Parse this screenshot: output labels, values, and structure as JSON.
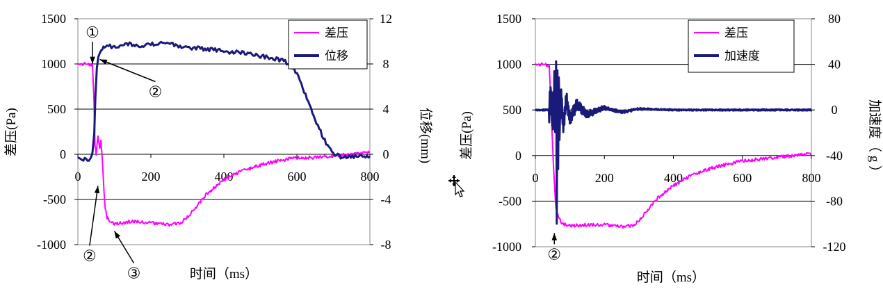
{
  "chart_data": [
    {
      "type": "line",
      "xlabel": "时间（ms）",
      "ylabel_left": "差压(Pa)",
      "ylabel_right": "位移(mm)",
      "xlim": [
        0,
        800
      ],
      "ylim_left": [
        -1000,
        1500
      ],
      "ylim_right": [
        -8,
        12
      ],
      "xticks": [
        "0",
        "200",
        "400",
        "600",
        "800"
      ],
      "yticks_left": [
        "1500",
        "1000",
        "500",
        "0",
        "-500",
        "-1000"
      ],
      "yticks_right": [
        "12",
        "8",
        "4",
        "0",
        "-4",
        "-8"
      ],
      "grid": "horizontal",
      "legend_position": "top-right",
      "series": [
        {
          "name": "差压",
          "axis": "left",
          "color": "#ff00ff",
          "x": [
            0,
            20,
            35,
            40,
            44,
            47,
            50,
            55,
            60,
            63,
            66,
            70,
            75,
            80,
            90,
            100,
            120,
            150,
            200,
            250,
            280,
            300,
            320,
            350,
            380,
            400,
            450,
            500,
            550,
            580,
            600,
            650,
            700,
            750,
            800
          ],
          "y": [
            1000,
            1000,
            995,
            980,
            600,
            100,
            0,
            200,
            50,
            150,
            0,
            -300,
            -600,
            -700,
            -750,
            -770,
            -760,
            -740,
            -760,
            -780,
            -760,
            -700,
            -600,
            -450,
            -350,
            -280,
            -180,
            -120,
            -70,
            -50,
            -40,
            -35,
            -20,
            0,
            20
          ]
        },
        {
          "name": "位移",
          "axis": "right",
          "color": "#1a1a7a",
          "x": [
            0,
            30,
            40,
            45,
            48,
            52,
            56,
            60,
            70,
            80,
            100,
            130,
            160,
            200,
            240,
            280,
            320,
            360,
            400,
            450,
            500,
            560,
            580,
            600,
            620,
            650,
            680,
            700,
            720,
            760,
            800
          ],
          "y": [
            -0.4,
            -0.4,
            0,
            2,
            5,
            7.5,
            8.5,
            9,
            9.6,
            9.6,
            9.5,
            9.8,
            9.6,
            9.7,
            9.9,
            9.5,
            9.4,
            9.3,
            9.1,
            9,
            8.7,
            8.3,
            8,
            7.2,
            5.5,
            3,
            1,
            0,
            -0.2,
            -0.2,
            -0.2
          ]
        }
      ],
      "annotations": [
        {
          "label": "①",
          "x": 40,
          "y": 1000
        },
        {
          "label": "②",
          "x": 60,
          "y": 1050
        },
        {
          "label": "②",
          "x": 55,
          "y": -350
        },
        {
          "label": "③",
          "x": 100,
          "y": -850
        }
      ]
    },
    {
      "type": "line",
      "xlabel": "时间（ms）",
      "ylabel_left": "差压(Pa)",
      "ylabel_right": "加速度（ g ）",
      "xlim": [
        0,
        800
      ],
      "ylim_left": [
        -1000,
        1500
      ],
      "ylim_right": [
        -120,
        80
      ],
      "xticks": [
        "0",
        "200",
        "400",
        "600",
        "800"
      ],
      "yticks_left": [
        "1500",
        "1000",
        "500",
        "0",
        "-500",
        "-1000"
      ],
      "yticks_right": [
        "80",
        "40",
        "0",
        "-40",
        "-80",
        "-120"
      ],
      "grid": "horizontal",
      "legend_position": "top-right",
      "series": [
        {
          "name": "差压",
          "axis": "left",
          "color": "#ff00ff",
          "x": [
            0,
            30,
            40,
            45,
            50,
            55,
            60,
            65,
            70,
            80,
            100,
            150,
            200,
            250,
            280,
            300,
            320,
            350,
            400,
            450,
            500,
            550,
            600,
            650,
            700,
            750,
            800
          ],
          "y": [
            1000,
            1000,
            980,
            600,
            100,
            -300,
            -600,
            -650,
            -700,
            -750,
            -770,
            -760,
            -760,
            -780,
            -770,
            -720,
            -620,
            -480,
            -330,
            -220,
            -150,
            -100,
            -60,
            -40,
            -20,
            0,
            20
          ]
        },
        {
          "name": "加速度",
          "axis": "right",
          "color": "#1a1a7a",
          "x": [
            0,
            40,
            45,
            50,
            55,
            58,
            60,
            62,
            64,
            66,
            68,
            70,
            75,
            80,
            90,
            100,
            120,
            150,
            200,
            250,
            300,
            400,
            500,
            600,
            700,
            800
          ],
          "y": [
            0,
            0,
            15,
            -15,
            25,
            -30,
            45,
            -90,
            30,
            -60,
            35,
            -20,
            15,
            -15,
            10,
            -8,
            5,
            -4,
            2,
            -2,
            1,
            0,
            0,
            0,
            0,
            0
          ]
        }
      ],
      "annotations": [
        {
          "label": "②",
          "x": 55,
          "y": -850
        }
      ]
    }
  ]
}
